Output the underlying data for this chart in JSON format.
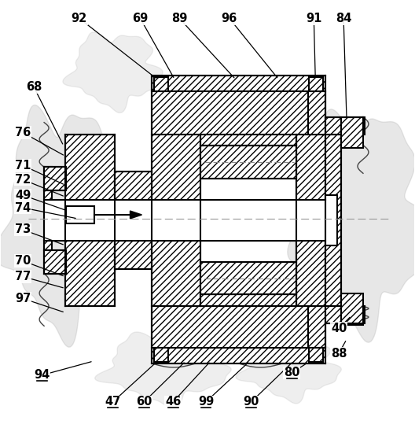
{
  "fig_width": 5.28,
  "fig_height": 5.44,
  "dpi": 100,
  "bg_color": "#ffffff",
  "line_color": "#000000",
  "annotations": [
    [
      "92",
      100,
      22,
      200,
      100
    ],
    [
      "68",
      42,
      110,
      80,
      185
    ],
    [
      "69",
      178,
      22,
      222,
      100
    ],
    [
      "89",
      228,
      22,
      300,
      100
    ],
    [
      "96",
      292,
      22,
      355,
      100
    ],
    [
      "91",
      400,
      22,
      402,
      100
    ],
    [
      "84",
      438,
      22,
      442,
      152
    ],
    [
      "76",
      28,
      168,
      82,
      198
    ],
    [
      "71",
      28,
      210,
      82,
      235
    ],
    [
      "72",
      28,
      228,
      82,
      250
    ],
    [
      "49",
      28,
      248,
      85,
      268
    ],
    [
      "74",
      28,
      264,
      98,
      278
    ],
    [
      "73",
      28,
      292,
      82,
      312
    ],
    [
      "70",
      28,
      332,
      82,
      352
    ],
    [
      "77",
      28,
      352,
      82,
      367
    ],
    [
      "97",
      28,
      380,
      82,
      398
    ],
    [
      "94",
      52,
      478,
      118,
      460
    ],
    [
      "47",
      143,
      512,
      200,
      460
    ],
    [
      "60",
      183,
      512,
      236,
      460
    ],
    [
      "46",
      220,
      512,
      268,
      460
    ],
    [
      "99",
      262,
      512,
      318,
      460
    ],
    [
      "90",
      320,
      512,
      374,
      460
    ],
    [
      "80",
      372,
      475,
      392,
      462
    ],
    [
      "88",
      432,
      450,
      442,
      432
    ],
    [
      "40",
      432,
      418,
      448,
      402
    ]
  ],
  "bottom_labels": [
    "94",
    "47",
    "60",
    "46",
    "99",
    "90",
    "80"
  ]
}
